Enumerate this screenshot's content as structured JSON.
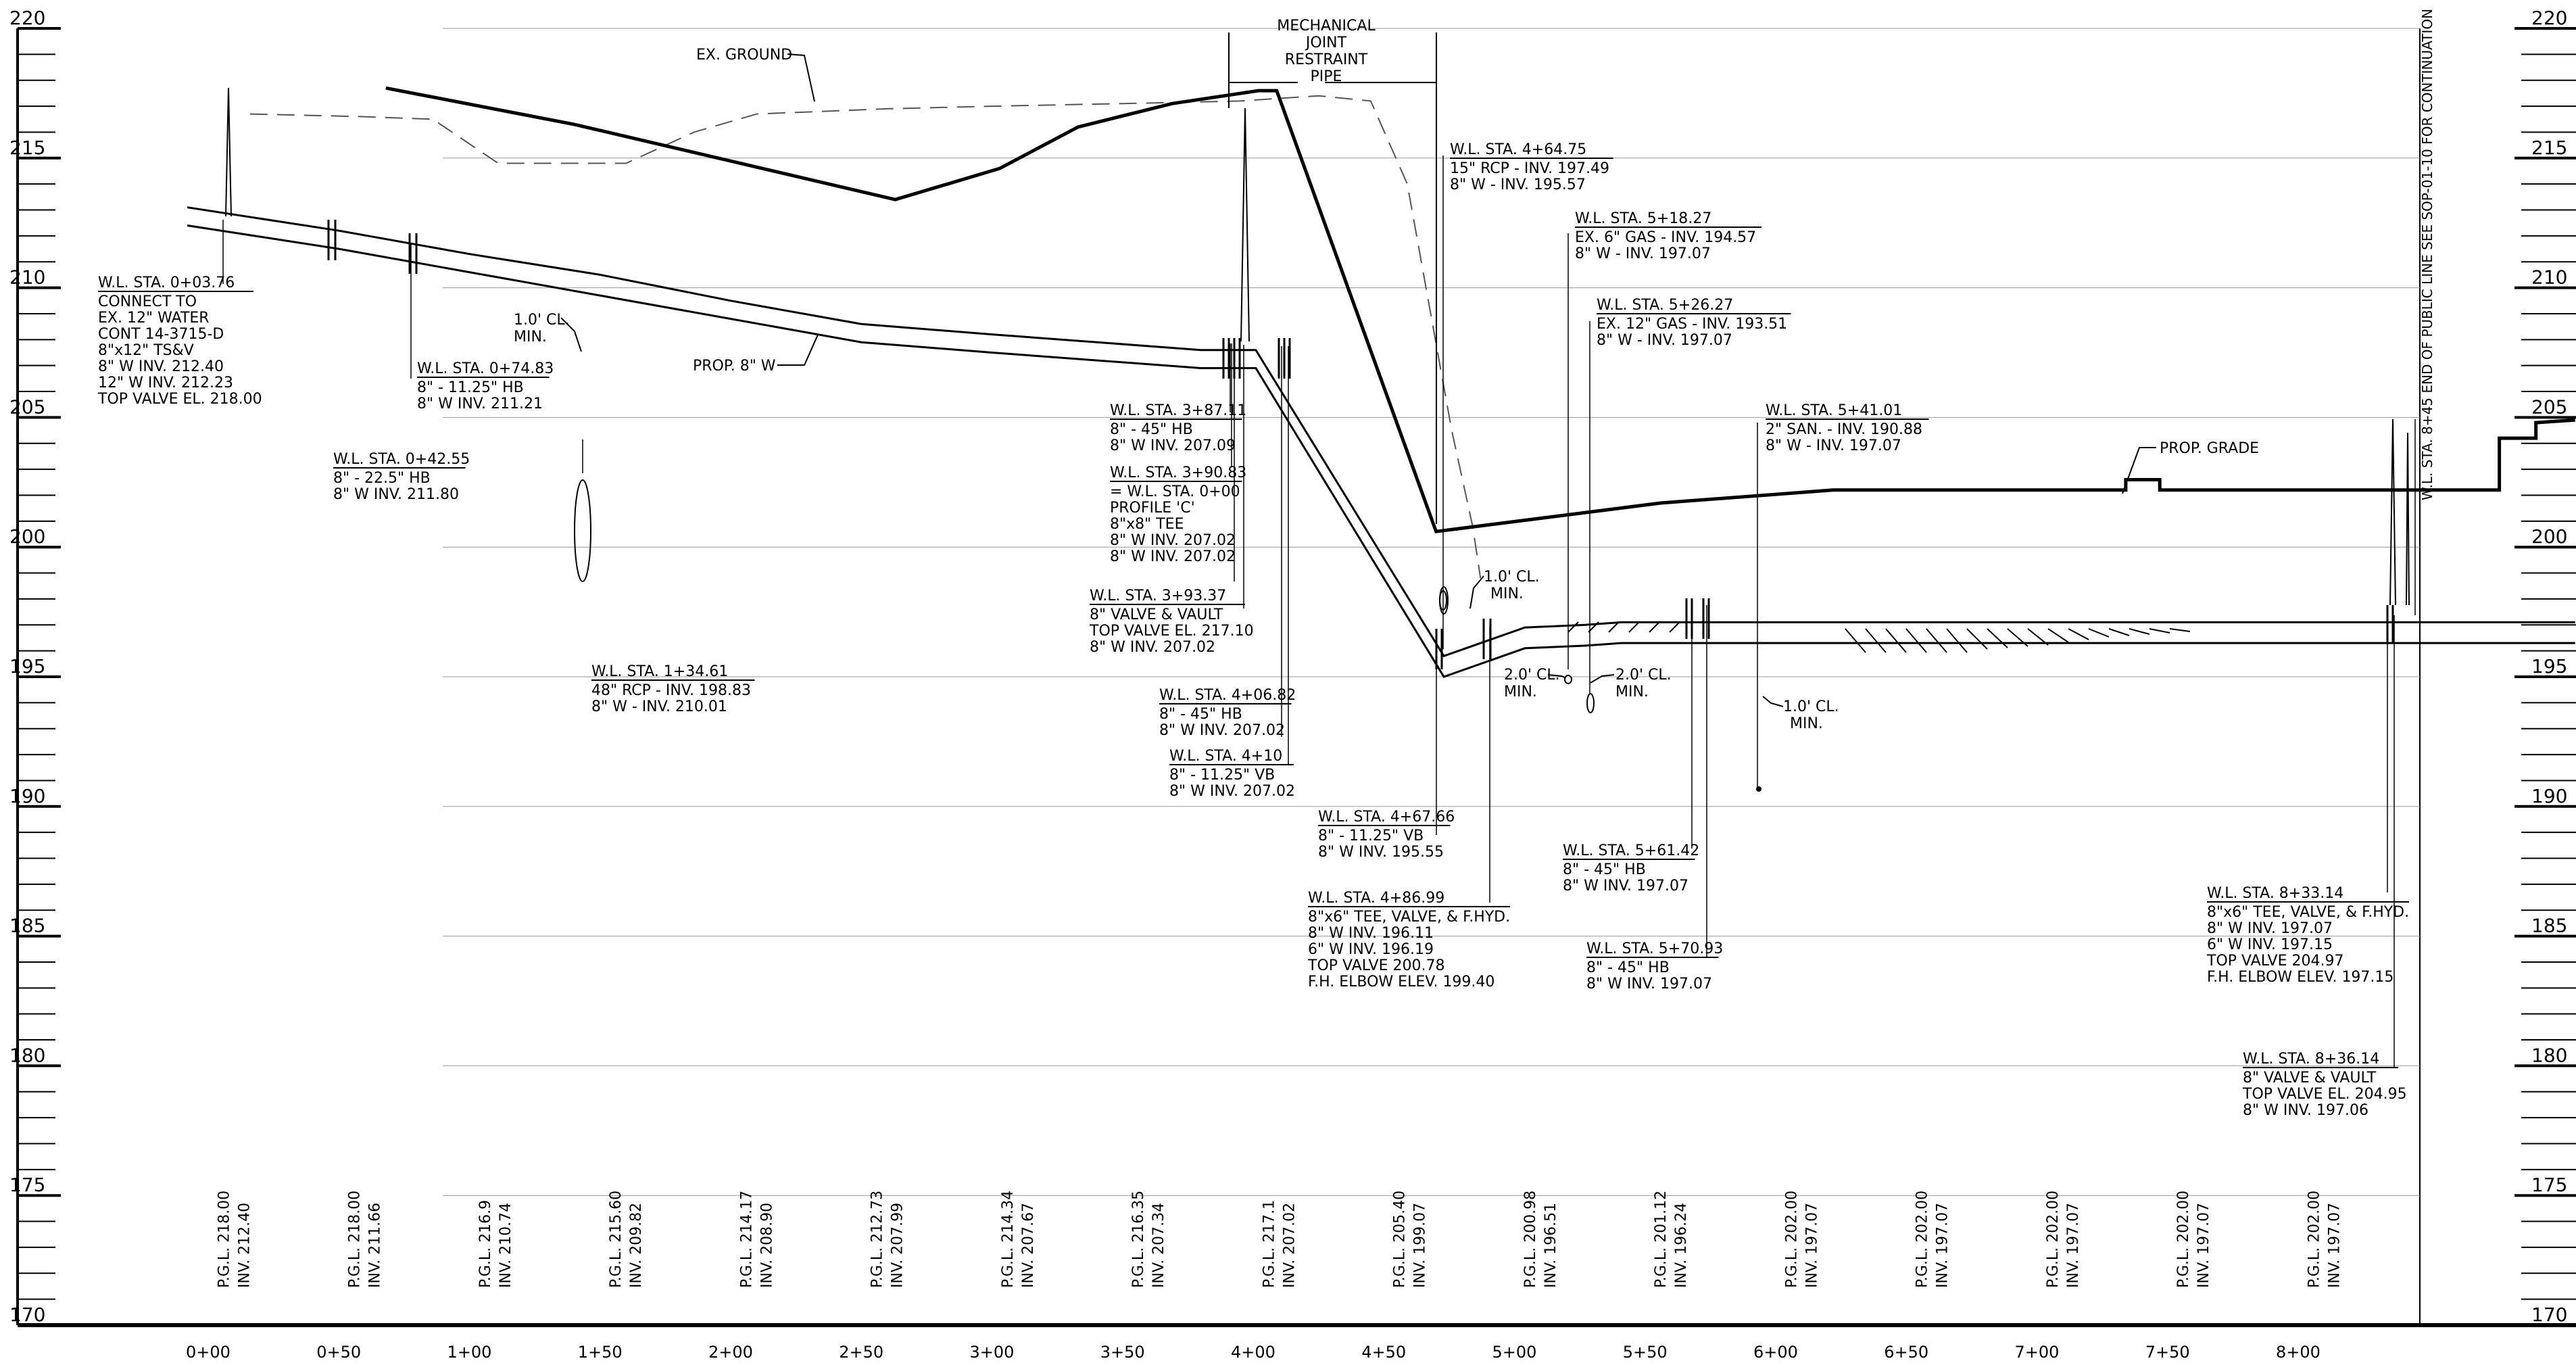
{
  "elevations": {
    "labels": [
      "220",
      "215",
      "210",
      "205",
      "200",
      "195",
      "190",
      "185",
      "180",
      "175",
      "170"
    ],
    "values": [
      220,
      215,
      210,
      205,
      200,
      195,
      190,
      185,
      180,
      175,
      170
    ]
  },
  "stations": {
    "labels": [
      "0+00",
      "0+50",
      "1+00",
      "1+50",
      "2+00",
      "2+50",
      "3+00",
      "3+50",
      "4+00",
      "4+50",
      "5+00",
      "5+50",
      "6+00",
      "6+50",
      "7+00",
      "7+50",
      "8+00"
    ],
    "values": [
      0,
      50,
      100,
      150,
      200,
      250,
      300,
      350,
      400,
      450,
      500,
      550,
      600,
      650,
      700,
      750,
      800
    ]
  },
  "bottom_labels": [
    {
      "sta": 12,
      "pgl": "P.G.L. 218.00",
      "inv": "INV. 212.40"
    },
    {
      "sta": 62,
      "pgl": "P.G.L. 218.00",
      "inv": "INV. 211.66"
    },
    {
      "sta": 112,
      "pgl": "P.G.L. 216.9",
      "inv": "INV. 210.74"
    },
    {
      "sta": 162,
      "pgl": "P.G.L. 215.60",
      "inv": "INV. 209.82"
    },
    {
      "sta": 212,
      "pgl": "P.G.L. 214.17",
      "inv": "INV. 208.90"
    },
    {
      "sta": 262,
      "pgl": "P.G.L. 212.73",
      "inv": "INV. 207.99"
    },
    {
      "sta": 312,
      "pgl": "P.G.L. 214.34",
      "inv": "INV. 207.67"
    },
    {
      "sta": 362,
      "pgl": "P.G.L. 216.35",
      "inv": "INV. 207.34"
    },
    {
      "sta": 412,
      "pgl": "P.G.L. 217.1",
      "inv": "INV. 207.02"
    },
    {
      "sta": 462,
      "pgl": "P.G.L. 205.40",
      "inv": "INV. 199.07"
    },
    {
      "sta": 512,
      "pgl": "P.G.L. 200.98",
      "inv": "INV. 196.51"
    },
    {
      "sta": 562,
      "pgl": "P.G.L. 201.12",
      "inv": "INV. 196.24"
    },
    {
      "sta": 612,
      "pgl": "P.G.L. 202.00",
      "inv": "INV. 197.07"
    },
    {
      "sta": 662,
      "pgl": "P.G.L. 202.00",
      "inv": "INV. 197.07"
    },
    {
      "sta": 712,
      "pgl": "P.G.L. 202.00",
      "inv": "INV. 197.07"
    },
    {
      "sta": 762,
      "pgl": "P.G.L. 202.00",
      "inv": "INV. 197.07"
    },
    {
      "sta": 812,
      "pgl": "P.G.L. 202.00",
      "inv": "INV. 197.07"
    }
  ],
  "profiles": {
    "existing_ground": [
      [
        16,
        216.7
      ],
      [
        58,
        216.6
      ],
      [
        86,
        216.5
      ],
      [
        111,
        214.8
      ],
      [
        130,
        214.8
      ],
      [
        160,
        214.8
      ],
      [
        186,
        216
      ],
      [
        210,
        216.7
      ],
      [
        260,
        216.9
      ],
      [
        300,
        217.0
      ],
      [
        350,
        217.1
      ],
      [
        395,
        217.2
      ],
      [
        425,
        217.4
      ],
      [
        445,
        217.2
      ],
      [
        459,
        214
      ],
      [
        476,
        204.5
      ],
      [
        484,
        200.8
      ],
      [
        487,
        198.8
      ]
    ],
    "proposed_grade": [
      [
        68,
        217.7
      ],
      [
        140,
        216.3
      ],
      [
        263,
        213.4
      ],
      [
        303,
        214.6
      ],
      [
        333,
        216.2
      ],
      [
        369,
        217.1
      ],
      [
        402,
        217.6
      ],
      [
        409,
        217.6
      ],
      [
        470,
        200.6
      ],
      [
        556,
        201.7
      ],
      [
        622,
        202.2
      ],
      [
        734,
        202.2
      ],
      [
        734,
        202.6
      ],
      [
        747,
        202.6
      ],
      [
        747,
        202.2
      ],
      [
        877,
        202.2
      ],
      [
        877,
        204.2
      ],
      [
        891,
        204.2
      ],
      [
        891,
        204.8
      ],
      [
        906,
        204.9
      ]
    ],
    "water_main_top": [
      [
        -8,
        213.1
      ],
      [
        50,
        212.2
      ],
      [
        100,
        211.3
      ],
      [
        150,
        210.5
      ],
      [
        200,
        209.5
      ],
      [
        250,
        208.6
      ],
      [
        300,
        208.2
      ],
      [
        380,
        207.6
      ],
      [
        390,
        207.6
      ],
      [
        401,
        207.6
      ],
      [
        473,
        195.8
      ],
      [
        504,
        196.9
      ],
      [
        527,
        197.0
      ],
      [
        541,
        197.1
      ],
      [
        620,
        197.1
      ],
      [
        906,
        197.1
      ]
    ],
    "water_main_bottom": [
      [
        -8,
        212.4
      ],
      [
        50,
        211.5
      ],
      [
        100,
        210.6
      ],
      [
        150,
        209.7
      ],
      [
        200,
        208.8
      ],
      [
        250,
        207.9
      ],
      [
        300,
        207.5
      ],
      [
        380,
        206.9
      ],
      [
        390,
        206.9
      ],
      [
        401,
        206.9
      ],
      [
        473,
        195.0
      ],
      [
        504,
        196.1
      ],
      [
        527,
        196.2
      ],
      [
        541,
        196.3
      ],
      [
        620,
        196.3
      ],
      [
        906,
        196.3
      ]
    ]
  },
  "title_top": {
    "line1": "MECHANICAL",
    "line2": "JOINT",
    "line3": "RESTRAINT",
    "line4": "PIPE"
  },
  "right_note": "W.L. STA. 8+45 END OF PUBLIC LINE SEE SOP-01-10 FOR CONTINUATION",
  "callouts": {
    "ex_ground": "EX. GROUND",
    "prop_w": "PROP. 8\" W",
    "prop_grade": "PROP. GRADE",
    "cl1": [
      "1.0' CL.",
      "MIN."
    ],
    "cl2": [
      "1.0' CL.",
      "MIN."
    ],
    "cl3": [
      "2.0' CL.",
      "MIN."
    ],
    "cl4": [
      "2.0' CL.",
      "MIN."
    ],
    "cl5": [
      "1.0' CL.",
      "MIN."
    ]
  },
  "notes": {
    "n0": {
      "head": "W.L. STA. 0+03.76",
      "lines": [
        "CONNECT TO",
        "EX. 12\" WATER",
        "CONT 14-3715-D",
        "8\"x12\" TS&V",
        "8\" W INV. 212.40",
        "12\" W INV. 212.23",
        "TOP VALVE EL. 218.00"
      ]
    },
    "n1": {
      "head": "W.L. STA. 0+74.83",
      "lines": [
        "8\" - 11.25\" HB",
        "8\" W INV. 211.21"
      ]
    },
    "n2": {
      "head": "W.L. STA. 0+42.55",
      "lines": [
        "8\" - 22.5\" HB",
        "8\" W INV. 211.80"
      ]
    },
    "n3": {
      "head": "W.L. STA. 1+34.61",
      "lines": [
        "48\" RCP - INV. 198.83",
        "8\" W - INV. 210.01"
      ]
    },
    "n4": {
      "head": "W.L. STA. 3+87.11",
      "lines": [
        "8\" - 45\" HB",
        "8\" W INV. 207.09"
      ]
    },
    "n5": {
      "head": "W.L. STA. 3+90.83",
      "lines": [
        "= W.L. STA. 0+00",
        "PROFILE 'C'",
        "8\"x8\" TEE",
        "8\" W INV. 207.02",
        "8\" W INV. 207.02"
      ]
    },
    "n6": {
      "head": "W.L. STA. 3+93.37",
      "lines": [
        "8\" VALVE & VAULT",
        "TOP VALVE EL. 217.10",
        "8\" W INV. 207.02"
      ]
    },
    "n7": {
      "head": "W.L. STA. 4+06.82",
      "lines": [
        "8\" - 45\" HB",
        "8\" W INV. 207.02"
      ]
    },
    "n8": {
      "head": "W.L. STA. 4+10",
      "lines": [
        "8\" - 11.25\" VB",
        "8\" W INV. 207.02"
      ]
    },
    "n9": {
      "head": "W.L. STA. 4+64.75",
      "lines": [
        "15\" RCP - INV. 197.49",
        "8\" W - INV. 195.57"
      ]
    },
    "n10": {
      "head": "W.L. STA. 5+18.27",
      "lines": [
        "EX. 6\" GAS - INV. 194.57",
        "8\" W - INV. 197.07"
      ]
    },
    "n11": {
      "head": "W.L. STA. 5+26.27",
      "lines": [
        "EX. 12\" GAS - INV. 193.51",
        "8\" W - INV. 197.07"
      ]
    },
    "n12": {
      "head": "W.L. STA. 5+41.01",
      "lines": [
        "2\" SAN. - INV. 190.88",
        "8\" W - INV. 197.07"
      ]
    },
    "n13": {
      "head": "W.L. STA. 4+67.66",
      "lines": [
        "8\" - 11.25\" VB",
        "8\" W INV. 195.55"
      ]
    },
    "n14": {
      "head": "W.L. STA. 4+86.99",
      "lines": [
        "8\"x6\" TEE, VALVE, & F.HYD.",
        "8\" W INV. 196.11",
        "6\" W INV. 196.19",
        "TOP VALVE 200.78",
        "F.H. ELBOW ELEV. 199.40"
      ]
    },
    "n15": {
      "head": "W.L. STA. 5+61.42",
      "lines": [
        "8\" - 45\" HB",
        "8\" W INV. 197.07"
      ]
    },
    "n16": {
      "head": "W.L. STA. 5+70.93",
      "lines": [
        "8\" - 45\" HB",
        "8\" W INV. 197.07"
      ]
    },
    "n17": {
      "head": "W.L. STA. 8+33.14",
      "lines": [
        "8\"x6\" TEE, VALVE, & F.HYD.",
        "8\" W INV. 197.07",
        "6\" W INV. 197.15",
        "TOP VALVE 204.97",
        "F.H. ELBOW ELEV. 197.15"
      ]
    },
    "n18": {
      "head": "W.L. STA. 8+36.14",
      "lines": [
        "8\" VALVE & VAULT",
        "TOP VALVE EL. 204.95",
        "8\" W INV. 197.06"
      ]
    }
  }
}
